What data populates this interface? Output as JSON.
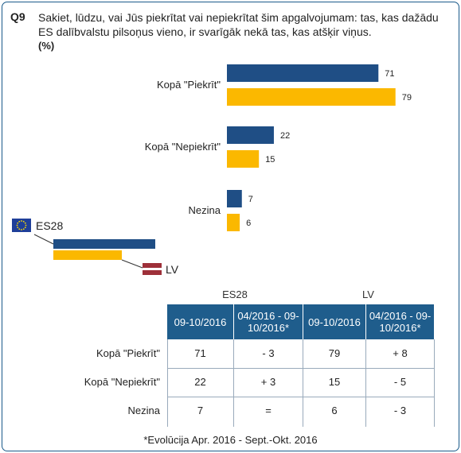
{
  "question": {
    "number": "Q9",
    "text": "Sakiet, lūdzu, vai Jūs piekrītat vai nepiekrītat šim apgalvojumam: tas, kas dažādu ES dalībvalstu pilsoņus vieno, ir svarīgāk nekā tas, kas atšķir viņus.",
    "unit": "(%)"
  },
  "colors": {
    "es28": "#1f4e85",
    "lv": "#fbb800",
    "header_bg": "#1f5d8c"
  },
  "chart_data": {
    "type": "bar",
    "orientation": "horizontal",
    "categories": [
      "Kopā \"Piekrīt\"",
      "Kopā \"Nepiekrīt\"",
      "Nezina"
    ],
    "series": [
      {
        "name": "ES28",
        "values": [
          71,
          22,
          7
        ]
      },
      {
        "name": "LV",
        "values": [
          79,
          15,
          6
        ]
      }
    ],
    "xlim": [
      0,
      100
    ],
    "grid": false,
    "legend": {
      "placement": "left",
      "items": [
        {
          "label": "ES28",
          "icon": "eu-flag-icon"
        },
        {
          "label": "LV",
          "icon": "latvia-flag-icon"
        }
      ]
    }
  },
  "table": {
    "groups": [
      "ES28",
      "LV"
    ],
    "column_headers": [
      "09-10/2016",
      "04/2016 - 09-10/2016*",
      "09-10/2016",
      "04/2016 - 09-10/2016*"
    ],
    "rows": [
      {
        "label": "Kopā \"Piekrīt\"",
        "cells": [
          "71",
          "- 3",
          "79",
          "+ 8"
        ]
      },
      {
        "label": "Kopā \"Nepiekrīt\"",
        "cells": [
          "22",
          "+ 3",
          "15",
          "- 5"
        ]
      },
      {
        "label": "Nezina",
        "cells": [
          "7",
          "=",
          "6",
          "- 3"
        ]
      }
    ]
  },
  "footnote": "*Evolūcija Apr. 2016 - Sept.-Okt. 2016"
}
